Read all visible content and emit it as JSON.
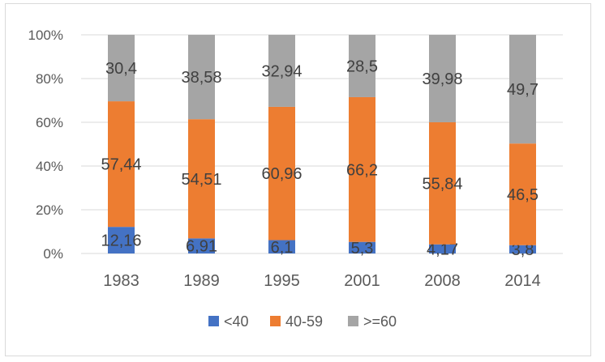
{
  "chart_data": {
    "type": "bar",
    "stacked": true,
    "percent_stacked": true,
    "title": "",
    "xlabel": "",
    "ylabel": "",
    "categories": [
      "1983",
      "1989",
      "1995",
      "2001",
      "2008",
      "2014"
    ],
    "series": [
      {
        "name": "<40",
        "color": "#4472c4",
        "values": [
          12.16,
          6.91,
          6.1,
          5.3,
          4.17,
          3.8
        ],
        "labels": [
          "12,16",
          "6,91",
          "6,1",
          "5,3",
          "4,17",
          "3,8"
        ]
      },
      {
        "name": "40-59",
        "color": "#ed7d31",
        "values": [
          57.44,
          54.51,
          60.96,
          66.2,
          55.84,
          46.5
        ],
        "labels": [
          "57,44",
          "54,51",
          "60,96",
          "66,2",
          "55,84",
          "46,5"
        ]
      },
      {
        "name": ">=60",
        "color": "#a5a5a5",
        "values": [
          30.4,
          38.58,
          32.94,
          28.5,
          39.98,
          49.7
        ],
        "labels": [
          "30,4",
          "38,58",
          "32,94",
          "28,5",
          "39,98",
          "49,7"
        ]
      }
    ],
    "y_ticks": [
      "0%",
      "20%",
      "40%",
      "60%",
      "80%",
      "100%"
    ],
    "ylim": [
      0,
      100
    ],
    "grid": true,
    "legend": "bottom"
  }
}
